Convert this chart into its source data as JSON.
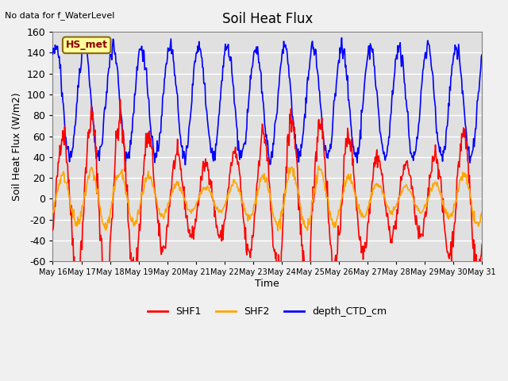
{
  "title": "Soil Heat Flux",
  "subtitle": "No data for f_WaterLevel",
  "ylabel": "Soil Heat Flux (W/m2)",
  "xlabel": "Time",
  "ylim": [
    -60,
    160
  ],
  "yticks": [
    -60,
    -40,
    -20,
    0,
    20,
    40,
    60,
    80,
    100,
    120,
    140,
    160
  ],
  "hs_met_label": "HS_met",
  "legend_entries": [
    "SHF1",
    "SHF2",
    "depth_CTD_cm"
  ],
  "legend_colors": [
    "#ff0000",
    "#ffa500",
    "#0000ff"
  ],
  "line_colors": {
    "SHF1": "#ff0000",
    "SHF2": "#ffa500",
    "depth_CTD_cm": "#0000ff"
  },
  "background_color": "#e0e0e0",
  "x_tick_labels": [
    "May 16",
    "May 17",
    "May 18",
    "May 19",
    "May 20",
    "May 21",
    "May 22",
    "May 23",
    "May 24",
    "May 25",
    "May 26",
    "May 27",
    "May 28",
    "May 29",
    "May 30",
    "May 31"
  ],
  "n_days": 15
}
